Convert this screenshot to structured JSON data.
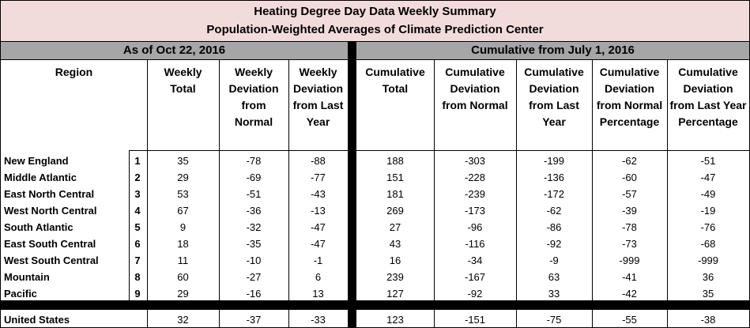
{
  "title": {
    "line1": "Heating Degree Day Data Weekly Summary",
    "line2": "Population-Weighted Averages of Climate Prediction Center"
  },
  "sections": {
    "left": "As of Oct 22, 2016",
    "right": "Cumulative from July 1, 2016"
  },
  "columns": {
    "region": "Region",
    "headers": [
      [
        "Weekly",
        "Total"
      ],
      [
        "Weekly",
        "Deviation",
        "from",
        "Normal"
      ],
      [
        "Weekly",
        "Deviation",
        "from Last",
        "Year"
      ],
      [
        "Cumulative",
        "Total"
      ],
      [
        "Cumulative",
        "Deviation",
        "from Normal"
      ],
      [
        "Cumulative",
        "Deviation",
        "from Last",
        "Year"
      ],
      [
        "Cumulative",
        "Deviation",
        "from Normal",
        "Percentage"
      ],
      [
        "Cumulative",
        "Deviation",
        "from Last Year",
        "Percentage"
      ]
    ]
  },
  "rows": [
    {
      "name": "New England",
      "num": "1",
      "values": [
        "35",
        "-78",
        "-88",
        "188",
        "-303",
        "-199",
        "-62",
        "-51"
      ]
    },
    {
      "name": "Middle Atlantic",
      "num": "2",
      "values": [
        "29",
        "-69",
        "-77",
        "151",
        "-228",
        "-136",
        "-60",
        "-47"
      ]
    },
    {
      "name": "East North Central",
      "num": "3",
      "values": [
        "53",
        "-51",
        "-43",
        "181",
        "-239",
        "-172",
        "-57",
        "-49"
      ]
    },
    {
      "name": "West North Central",
      "num": "4",
      "values": [
        "67",
        "-36",
        "-13",
        "269",
        "-173",
        "-62",
        "-39",
        "-19"
      ]
    },
    {
      "name": "South Atlantic",
      "num": "5",
      "values": [
        "9",
        "-32",
        "-47",
        "27",
        "-96",
        "-86",
        "-78",
        "-76"
      ]
    },
    {
      "name": "East South Central",
      "num": "6",
      "values": [
        "18",
        "-35",
        "-47",
        "43",
        "-116",
        "-92",
        "-73",
        "-68"
      ]
    },
    {
      "name": "West South Central",
      "num": "7",
      "values": [
        "11",
        "-10",
        "-1",
        "16",
        "-34",
        "-9",
        "-999",
        "-999"
      ]
    },
    {
      "name": "Mountain",
      "num": "8",
      "values": [
        "60",
        "-27",
        "6",
        "239",
        "-167",
        "63",
        "-41",
        "36"
      ]
    },
    {
      "name": "Pacific",
      "num": "9",
      "values": [
        "29",
        "-16",
        "13",
        "127",
        "-92",
        "33",
        "-42",
        "35"
      ]
    }
  ],
  "total": {
    "name": "United States",
    "values": [
      "32",
      "-37",
      "-33",
      "123",
      "-151",
      "-75",
      "-55",
      "-38"
    ]
  }
}
